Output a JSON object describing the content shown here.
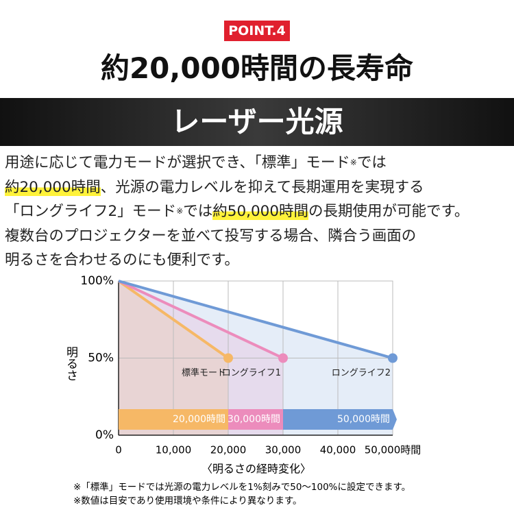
{
  "badge": "POINT.4",
  "headline": "約20,000時間の長寿命",
  "banner": "レーザー光源",
  "paragraph": [
    [
      {
        "text": "用途に応じて電力モードが選択でき、「標準」モード"
      },
      {
        "text": "※",
        "style": "sup"
      },
      {
        "text": "では"
      }
    ],
    [
      {
        "text": "約20,000時間",
        "style": "highlight"
      },
      {
        "text": "、光源の電力レベルを抑えて長期運用を実現する"
      }
    ],
    [
      {
        "text": "「ロングライフ2」モード"
      },
      {
        "text": "※",
        "style": "sup"
      },
      {
        "text": "では"
      },
      {
        "text": "約50,000時間",
        "style": "highlight"
      },
      {
        "text": "の長期使用が可能です。"
      }
    ],
    [
      {
        "text": "複数台のプロジェクターを並べて投写する場合、隣合う画面の"
      }
    ],
    [
      {
        "text": "明るさを合わせるのにも便利です。"
      }
    ]
  ],
  "chart_data": {
    "type": "line",
    "x_label": "〈明るさの経時変化〉",
    "y_label": "明るさ",
    "xlim": [
      0,
      50000
    ],
    "xticks": [
      0,
      {
        "value": 10000,
        "label": "10,000"
      },
      {
        "value": 20000,
        "label": "20,000"
      },
      {
        "value": 30000,
        "label": "30,000"
      },
      {
        "value": 40000,
        "label": "40,000"
      },
      {
        "value": 50000,
        "label": "50,000時間"
      }
    ],
    "ylim": [
      0,
      100
    ],
    "yticks": [
      {
        "value": 0,
        "label": "0%"
      },
      {
        "value": 50,
        "label": "50%"
      },
      {
        "value": 100,
        "label": "100%"
      }
    ],
    "grid": true,
    "series": [
      {
        "name": "標準モード",
        "color": "#f6b866",
        "x": [
          0,
          20000
        ],
        "values": [
          100,
          50
        ],
        "duration_label": "20,000時間"
      },
      {
        "name": "ロングライフ1",
        "color": "#ec8cbc",
        "x": [
          0,
          30000
        ],
        "values": [
          100,
          50
        ],
        "duration_label": "30,000時間"
      },
      {
        "name": "ロングライフ2",
        "color": "#6f9ad6",
        "x": [
          0,
          50000
        ],
        "values": [
          100,
          50
        ],
        "duration_label": "50,000時間"
      }
    ]
  },
  "footnotes": [
    "※「標準」モードでは光源の電力レベルを1%刻みで50〜100%に設定できます。",
    "※数値は目安であり使用環境や条件により異なります。"
  ]
}
